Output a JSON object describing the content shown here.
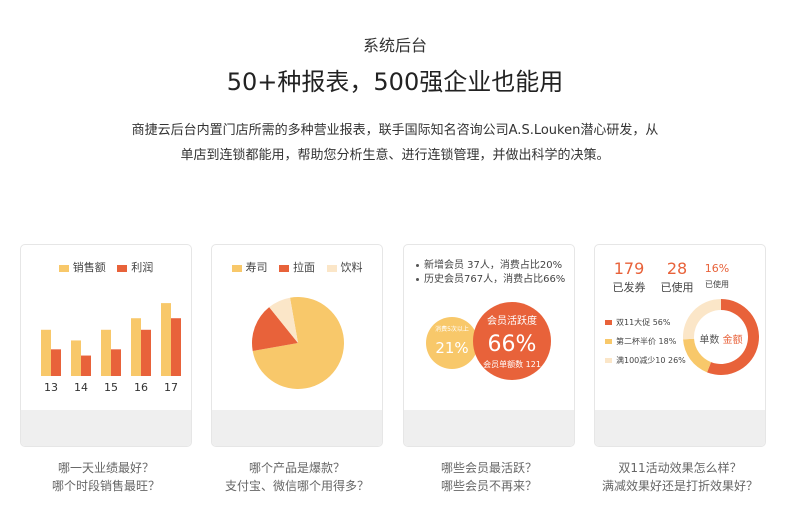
{
  "header": {
    "subtitle": "系统后台",
    "title": "50+种报表，500强企业也能用",
    "description_line1": "商捷云后台内置门店所需的多种营业报表，联手国际知名咨询公司A.S.Louken潜心研发，从",
    "description_line2": "单店到连锁都能用，帮助您分析生意、进行连锁管理，并做出科学的决策。"
  },
  "colors": {
    "yellow": "#f8c86a",
    "orange": "#e8623a",
    "light": "#fbe6c8",
    "footer": "#efefef"
  },
  "cards": [
    {
      "legend": [
        "销售额",
        "利润"
      ],
      "caption": [
        "哪一天业绩最好？",
        "哪个时段销售最旺？"
      ]
    },
    {
      "legend": [
        "寿司",
        "拉面",
        "饮料"
      ],
      "caption": [
        "哪个产品是爆款？",
        "支付宝、微信哪个用得多？"
      ]
    },
    {
      "notes": [
        "新增会员 37人，消费占比20%",
        "历史会员767人，消费占比66%"
      ],
      "small_circle": {
        "label": "消费5次以上",
        "value": "21%"
      },
      "big_circle": {
        "title": "会员活跃度",
        "value": "66%",
        "sub": "会员单额数 121"
      },
      "caption": [
        "哪些会员最活跃？",
        "哪些会员不再来？"
      ]
    },
    {
      "stats": [
        {
          "value": "179",
          "label": "已发券"
        },
        {
          "value": "28",
          "label": "已使用"
        },
        {
          "value": "16%",
          "label": "已使用"
        }
      ],
      "legend": [
        "双11大促 56%",
        "第二杯半价 18%",
        "满100减少10 26%"
      ],
      "donut_center": [
        "单数",
        "金额"
      ],
      "caption": [
        "双11活动效果怎么样？",
        "满减效果好还是打折效果好？"
      ]
    }
  ],
  "chart_data": [
    {
      "type": "bar",
      "categories": [
        "13",
        "14",
        "15",
        "16",
        "17"
      ],
      "series": [
        {
          "name": "销售额",
          "values": [
            5.2,
            4.0,
            5.2,
            6.5,
            8.2
          ]
        },
        {
          "name": "利润",
          "values": [
            3.0,
            2.3,
            3.0,
            5.2,
            6.5
          ]
        }
      ],
      "ylim": [
        0,
        9
      ],
      "legend": "top"
    },
    {
      "type": "pie",
      "labels": [
        "寿司",
        "拉面",
        "饮料"
      ],
      "values": [
        75,
        17,
        8
      ],
      "legend": "top"
    },
    {
      "type": "pie",
      "labels": [
        "双11大促",
        "第二杯半价",
        "满100减少10"
      ],
      "values": [
        56,
        18,
        26
      ],
      "legend": "left"
    }
  ]
}
